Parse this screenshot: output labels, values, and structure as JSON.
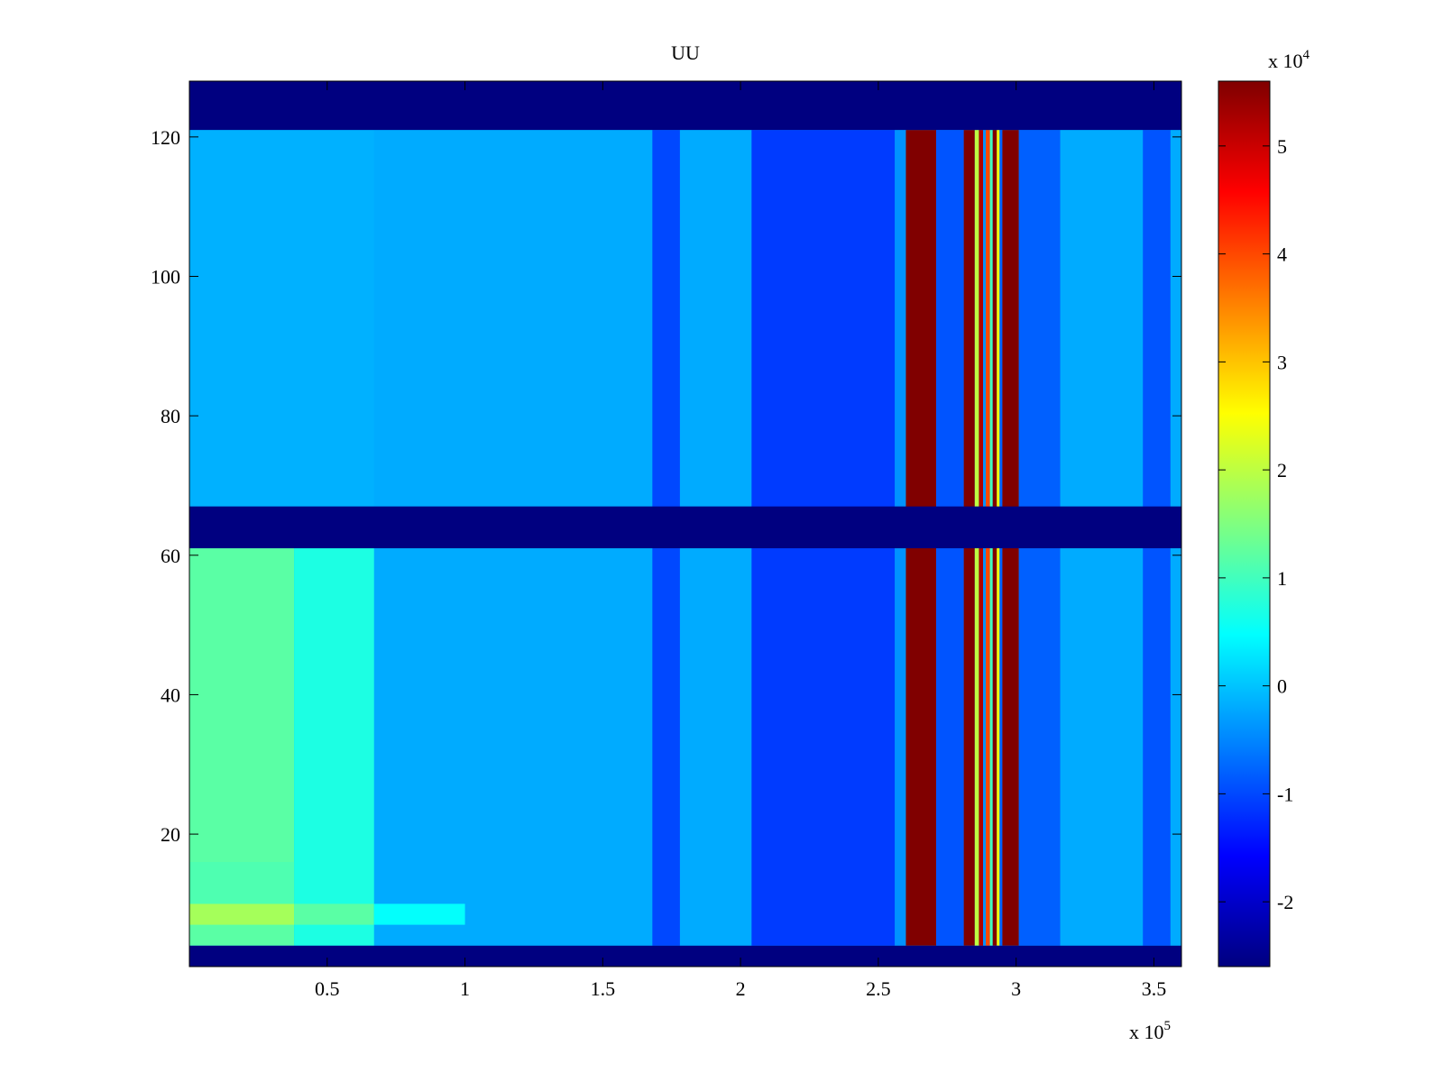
{
  "chart_data": {
    "type": "heatmap",
    "title": "UU",
    "xlabel": "",
    "ylabel": "",
    "xlim": [
      0,
      360000
    ],
    "ylim": [
      1,
      128
    ],
    "x_ticks": [
      50000,
      100000,
      150000,
      200000,
      250000,
      300000,
      350000
    ],
    "x_tick_labels": [
      "0.5",
      "1",
      "1.5",
      "2",
      "2.5",
      "3",
      "3.5"
    ],
    "x_multiplier": {
      "base": "x 10",
      "exponent": "5"
    },
    "y_ticks": [
      20,
      40,
      60,
      80,
      100,
      120
    ],
    "y_tick_labels": [
      "20",
      "40",
      "60",
      "80",
      "100",
      "120"
    ],
    "colormap": "jet",
    "colorbar": {
      "clim": [
        -26000,
        56000
      ],
      "ticks": [
        -20000,
        -10000,
        0,
        10000,
        20000,
        30000,
        40000,
        50000
      ],
      "tick_labels": [
        "-2",
        "-1",
        "0",
        "1",
        "2",
        "3",
        "4",
        "5"
      ],
      "multiplier": {
        "base": "x 10",
        "exponent": "4"
      }
    },
    "base_value": -2000,
    "masked_row_bands": [
      {
        "y_from": 1,
        "y_to": 4,
        "value": -26000
      },
      {
        "y_from": 61,
        "y_to": 67,
        "value": -26000
      },
      {
        "y_from": 121,
        "y_to": 128,
        "value": -26000
      }
    ],
    "column_bands": [
      {
        "x_from": 0,
        "x_to": 38000,
        "y_from": 4,
        "y_to": 61,
        "value": 12000
      },
      {
        "x_from": 38000,
        "x_to": 67000,
        "y_from": 4,
        "y_to": 61,
        "value": 7000
      },
      {
        "x_from": 0,
        "x_to": 38000,
        "y_from": 7,
        "y_to": 10,
        "value": 18000
      },
      {
        "x_from": 38000,
        "x_to": 67000,
        "y_from": 7,
        "y_to": 10,
        "value": 12000
      },
      {
        "x_from": 67000,
        "x_to": 100000,
        "y_from": 7,
        "y_to": 10,
        "value": 5000
      },
      {
        "x_from": 0,
        "x_to": 38000,
        "y_from": 10,
        "y_to": 16,
        "value": 11000
      },
      {
        "x_from": 0,
        "x_to": 67000,
        "y_from": 67,
        "y_to": 121,
        "value": -1500
      },
      {
        "x_from": 168000,
        "x_to": 178000,
        "y_from": 4,
        "y_to": 121,
        "value": -10000
      },
      {
        "x_from": 204000,
        "x_to": 256000,
        "y_from": 4,
        "y_to": 121,
        "value": -11000
      },
      {
        "x_from": 256000,
        "x_to": 260000,
        "y_from": 4,
        "y_to": 121,
        "value": -4000
      },
      {
        "x_from": 260000,
        "x_to": 271000,
        "y_from": 4,
        "y_to": 121,
        "value": 56000
      },
      {
        "x_from": 271000,
        "x_to": 281000,
        "y_from": 4,
        "y_to": 121,
        "value": -9000
      },
      {
        "x_from": 281000,
        "x_to": 285000,
        "y_from": 4,
        "y_to": 121,
        "value": 56000
      },
      {
        "x_from": 285000,
        "x_to": 286500,
        "y_from": 4,
        "y_to": 121,
        "value": 20000
      },
      {
        "x_from": 286500,
        "x_to": 288000,
        "y_from": 4,
        "y_to": 121,
        "value": 52000
      },
      {
        "x_from": 288000,
        "x_to": 289000,
        "y_from": 4,
        "y_to": 121,
        "value": -4000
      },
      {
        "x_from": 289000,
        "x_to": 290500,
        "y_from": 4,
        "y_to": 121,
        "value": 40000
      },
      {
        "x_from": 290500,
        "x_to": 291500,
        "y_from": 4,
        "y_to": 121,
        "value": 10000
      },
      {
        "x_from": 291500,
        "x_to": 293000,
        "y_from": 4,
        "y_to": 121,
        "value": 56000
      },
      {
        "x_from": 293000,
        "x_to": 294000,
        "y_from": 4,
        "y_to": 121,
        "value": 25000
      },
      {
        "x_from": 294000,
        "x_to": 295000,
        "y_from": 4,
        "y_to": 121,
        "value": -8000
      },
      {
        "x_from": 295000,
        "x_to": 301000,
        "y_from": 4,
        "y_to": 121,
        "value": 56000
      },
      {
        "x_from": 301000,
        "x_to": 316000,
        "y_from": 4,
        "y_to": 121,
        "value": -8000
      },
      {
        "x_from": 346000,
        "x_to": 356000,
        "y_from": 4,
        "y_to": 121,
        "value": -9000
      }
    ]
  }
}
